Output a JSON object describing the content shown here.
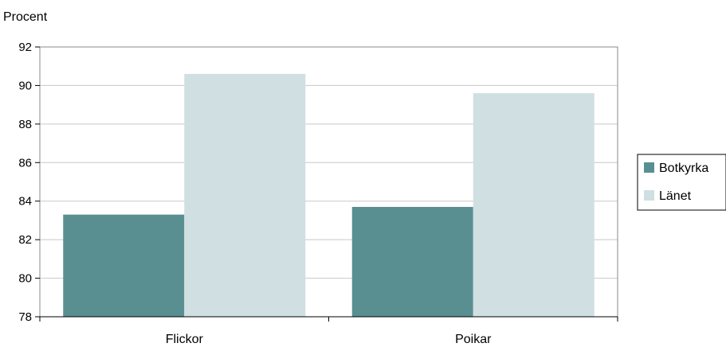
{
  "chart_data": {
    "type": "bar",
    "ylabel": "Procent",
    "categories": [
      "Flickor",
      "Poikar"
    ],
    "series": [
      {
        "name": "Botkyrka",
        "color": "#5a8f92",
        "values": [
          83.3,
          83.7
        ]
      },
      {
        "name": "Länet",
        "color": "#cfdfe2",
        "values": [
          90.6,
          89.6
        ]
      }
    ],
    "ylim": [
      78,
      92
    ],
    "yticks": [
      "78",
      "80",
      "82",
      "84",
      "86",
      "88",
      "90",
      "92"
    ],
    "grid": true,
    "legend_position": "right"
  }
}
